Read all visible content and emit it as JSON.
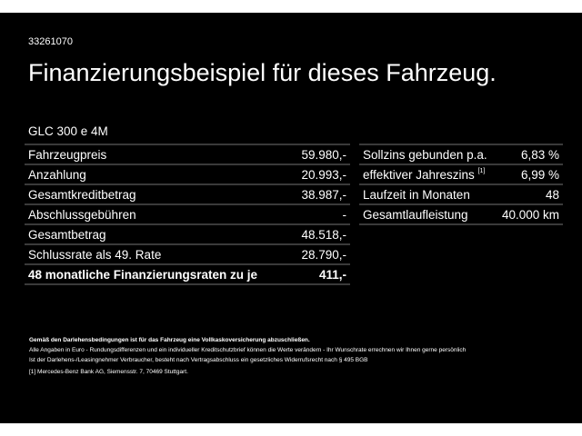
{
  "id": "33261070",
  "title": "Finanzierungsbeispiel für dieses Fahrzeug.",
  "model": "GLC 300 e 4M",
  "left_table": [
    {
      "label": "Fahrzeugpreis",
      "value": "59.980,-"
    },
    {
      "label": "Anzahlung",
      "value": "20.993,-"
    },
    {
      "label": "Gesamtkreditbetrag",
      "value": "38.987,-"
    },
    {
      "label": "Abschlussgebühren",
      "value": "-"
    },
    {
      "label": "Gesamtbetrag",
      "value": "48.518,-"
    },
    {
      "label": "Schlussrate als 49. Rate",
      "value": "28.790,-"
    },
    {
      "label": "48 monatliche Finanzierungsraten zu je",
      "value": "411,-"
    }
  ],
  "right_table": [
    {
      "label": "Sollzins gebunden p.a.",
      "sup": "",
      "value": "6,83 %"
    },
    {
      "label": "effektiver Jahreszins",
      "sup": "[1]",
      "value": "6,99 %"
    },
    {
      "label": "Laufzeit in Monaten",
      "sup": "",
      "value": "48"
    },
    {
      "label": "Gesamtlaufleistung",
      "sup": "",
      "value": "40.000 km"
    }
  ],
  "notes": {
    "bold": "Gemäß den Darlehensbedingungen ist für das Fahrzeug eine Vollkaskoversicherung abzuschließen.",
    "line1": "Alle Angaben in Euro - Rundungsdifferenzen und ein individueller Kreditschutzbrief können die Werte verändern - Ihr Wunschrate errechnen wir Ihnen gerne persönlich",
    "line2": "Ist der Darlehens-/Leasingnehmer Verbraucher, besteht nach Vertragsabschluss ein gesetzliches Widerrufsrecht nach § 495 BGB",
    "footnote": "[1] Mercedes-Benz Bank AG, Siemensstr. 7, 70469 Stuttgart."
  }
}
